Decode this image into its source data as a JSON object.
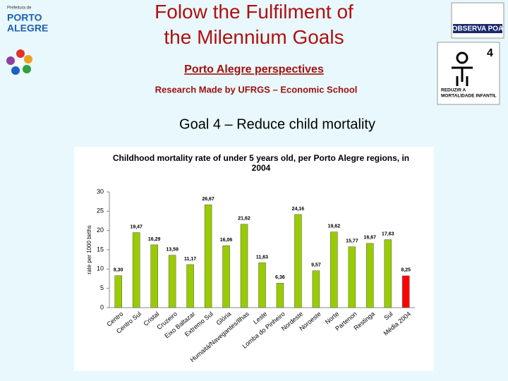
{
  "slide": {
    "title": "Folow the Fulfilment of the Milennium Goals",
    "subtitle": "Porto Alegre perspectives",
    "research": "Research Made by UFRGS – Economic School",
    "goal": "Goal 4 – Reduce child mortality",
    "logo_left_top": "Prefeitura de",
    "logo_left_1": "PORTO",
    "logo_left_2": "ALEGRE",
    "logo_right": "OBSERVA POA",
    "goal_icon_number": "4",
    "goal_icon_1": "REDUZIR A",
    "goal_icon_2": "MORTALIDADE INFANTIL"
  },
  "chart_data": {
    "type": "bar",
    "title": "Childhood mortality rate of under 5 years old, per Porto Alegre regions, in 2004",
    "y_label": "rate per 1000 births",
    "categories": [
      "Centro",
      "Centro Sul",
      "Cristal",
      "Cruzeiro",
      "Eixo Baltazar",
      "Extremo Sul",
      "Glória",
      "Humaitá/Navegantes/Ilhas",
      "Leste",
      "Lomba do Pinheiro",
      "Nordeste",
      "Noroeste",
      "Norte",
      "Partenon",
      "Restinga",
      "Sul",
      "Média 2004"
    ],
    "values": [
      8.3,
      19.47,
      16.29,
      13.59,
      11.17,
      26.67,
      16.06,
      21.62,
      11.63,
      6.36,
      24.16,
      9.57,
      19.62,
      15.77,
      16.67,
      17.63,
      8.25
    ],
    "value_labels": [
      "8,30",
      "19,47",
      "16,29",
      "13,59",
      "11,17",
      "26,67",
      "16,06",
      "21,62",
      "11,63",
      "6,36",
      "24,16",
      "9,57",
      "19,62",
      "15,77",
      "16,67",
      "17,63",
      "8,25"
    ],
    "colors": [
      "#99cc00",
      "#99cc00",
      "#99cc00",
      "#99cc00",
      "#99cc00",
      "#99cc00",
      "#99cc00",
      "#99cc00",
      "#99cc00",
      "#99cc00",
      "#99cc00",
      "#99cc00",
      "#99cc00",
      "#99cc00",
      "#99cc00",
      "#99cc00",
      "#ff0000"
    ],
    "ylim": [
      0,
      30
    ],
    "yticks": [
      0,
      5,
      10,
      15,
      20,
      25,
      30
    ],
    "grid": false
  }
}
